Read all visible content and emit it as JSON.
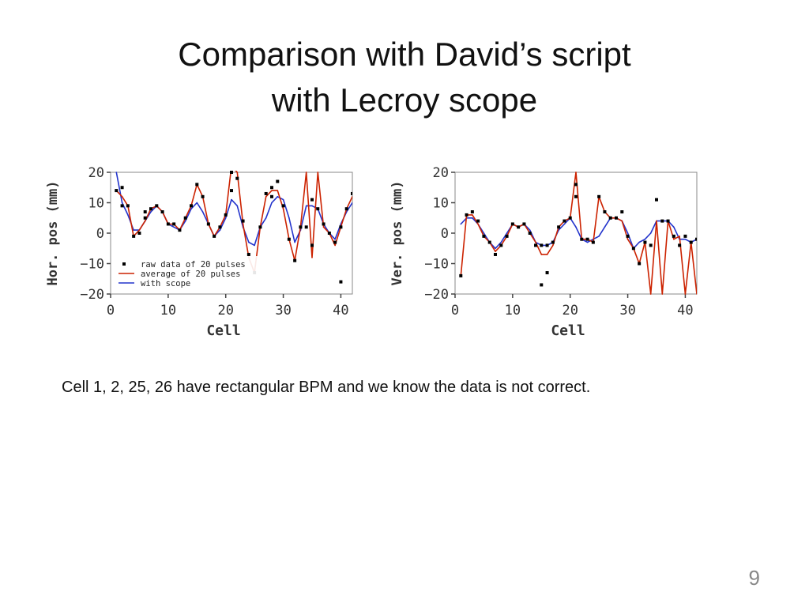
{
  "slide": {
    "title_line1": "Comparison with David’s script",
    "title_line2": "with Lecroy scope",
    "caption": "Cell 1, 2, 25, 26 have rectangular BPM and we know the data is not correct.",
    "page_number": "9"
  },
  "colors": {
    "raw": "#000000",
    "average": "#cc2200",
    "scope": "#2233cc"
  },
  "chart_data": [
    {
      "type": "line",
      "xlabel": "Cell",
      "ylabel": "Hor. pos (mm)",
      "xlim": [
        0,
        42
      ],
      "ylim": [
        -20,
        20
      ],
      "xticks": [
        0,
        10,
        20,
        30,
        40
      ],
      "yticks": [
        20,
        10,
        0,
        -10,
        -20
      ],
      "legend_position": "bottom-center",
      "legend": [
        "raw data of 20 pulses",
        "average of 20 pulses",
        "with scope"
      ],
      "series": [
        {
          "name": "average of 20 pulses",
          "kind": "line",
          "x": [
            1,
            2,
            3,
            4,
            5,
            6,
            7,
            8,
            9,
            10,
            11,
            12,
            13,
            14,
            15,
            16,
            17,
            18,
            19,
            20,
            21,
            22,
            23,
            24,
            25,
            26,
            27,
            28,
            29,
            30,
            31,
            32,
            33,
            34,
            35,
            36,
            37,
            38,
            39,
            40,
            41,
            42
          ],
          "y": [
            14,
            12,
            9,
            -1,
            1,
            4,
            8,
            9,
            7,
            3,
            3,
            1,
            5,
            9,
            16,
            12,
            3,
            -1,
            2,
            6,
            22,
            20,
            3,
            -8,
            -13,
            2,
            12,
            14,
            14,
            8,
            -2,
            -9,
            2,
            20,
            -8,
            20,
            2,
            0,
            -4,
            2,
            8,
            12
          ]
        },
        {
          "name": "with scope",
          "kind": "line",
          "x": [
            1,
            2,
            3,
            4,
            5,
            6,
            7,
            8,
            9,
            10,
            11,
            12,
            13,
            14,
            15,
            16,
            17,
            18,
            19,
            20,
            21,
            22,
            23,
            24,
            25,
            26,
            27,
            28,
            29,
            30,
            31,
            32,
            33,
            34,
            35,
            36,
            37,
            38,
            39,
            40,
            41,
            42
          ],
          "y": [
            20,
            10,
            6,
            1,
            1,
            4,
            7,
            9,
            7,
            3,
            2,
            1,
            4,
            8,
            10,
            7,
            3,
            -1,
            1,
            5,
            11,
            9,
            2,
            -3,
            -4,
            2,
            5,
            10,
            12,
            11,
            5,
            -3,
            1,
            9,
            9,
            8,
            3,
            0,
            -2,
            3,
            7,
            10
          ]
        },
        {
          "name": "raw data of 20 pulses",
          "kind": "points",
          "x": [
            1,
            2,
            2,
            3,
            4,
            5,
            6,
            6,
            7,
            8,
            9,
            10,
            11,
            12,
            13,
            14,
            15,
            16,
            17,
            18,
            19,
            20,
            21,
            21,
            22,
            23,
            24,
            25,
            26,
            27,
            28,
            28,
            29,
            30,
            31,
            32,
            33,
            34,
            35,
            35,
            36,
            37,
            38,
            39,
            40,
            40,
            41,
            42
          ],
          "y": [
            14,
            15,
            9,
            9,
            -1,
            0,
            5,
            7,
            8,
            9,
            7,
            3,
            3,
            1,
            5,
            9,
            16,
            12,
            3,
            -1,
            2,
            6,
            20,
            14,
            18,
            4,
            -7,
            -13,
            2,
            13,
            15,
            12,
            17,
            9,
            -2,
            -9,
            2,
            2,
            11,
            -4,
            8,
            3,
            0,
            -3,
            -16,
            2,
            8,
            13
          ]
        }
      ]
    },
    {
      "type": "line",
      "xlabel": "Cell",
      "ylabel": "Ver. pos (mm)",
      "xlim": [
        0,
        42
      ],
      "ylim": [
        -20,
        20
      ],
      "xticks": [
        0,
        10,
        20,
        30,
        40
      ],
      "yticks": [
        20,
        10,
        0,
        -10,
        -20
      ],
      "series": [
        {
          "name": "average of 20 pulses",
          "kind": "line",
          "x": [
            1,
            2,
            3,
            4,
            5,
            6,
            7,
            8,
            9,
            10,
            11,
            12,
            13,
            14,
            15,
            16,
            17,
            18,
            19,
            20,
            21,
            22,
            23,
            24,
            25,
            26,
            27,
            28,
            29,
            30,
            31,
            32,
            33,
            34,
            35,
            36,
            37,
            38,
            39,
            40,
            41,
            42
          ],
          "y": [
            -14,
            6,
            6,
            3,
            -1,
            -3,
            -6,
            -4,
            -1,
            3,
            2,
            3,
            0,
            -3,
            -7,
            -7,
            -4,
            2,
            4,
            5,
            20,
            -2,
            -2,
            -3,
            12,
            7,
            5,
            5,
            4,
            -2,
            -5,
            -10,
            -3,
            -20,
            4,
            -20,
            4,
            -2,
            -1,
            -20,
            -3,
            -20
          ]
        },
        {
          "name": "with scope",
          "kind": "line",
          "x": [
            1,
            2,
            3,
            4,
            5,
            6,
            7,
            8,
            9,
            10,
            11,
            12,
            13,
            14,
            15,
            16,
            17,
            18,
            19,
            20,
            21,
            22,
            23,
            24,
            25,
            26,
            27,
            28,
            29,
            30,
            31,
            32,
            33,
            34,
            35,
            36,
            37,
            38,
            39,
            40,
            41,
            42
          ],
          "y": [
            3,
            5,
            5,
            3,
            0,
            -3,
            -5,
            -3,
            0,
            3,
            2,
            3,
            1,
            -3,
            -4,
            -4,
            -3,
            1,
            3,
            5,
            2,
            -2,
            -3,
            -2,
            -1,
            2,
            5,
            5,
            4,
            0,
            -5,
            -3,
            -2,
            0,
            4,
            4,
            4,
            2,
            -2,
            -2,
            -3,
            -2
          ]
        },
        {
          "name": "raw data of 20 pulses",
          "kind": "points",
          "x": [
            1,
            2,
            3,
            4,
            5,
            6,
            7,
            8,
            9,
            10,
            11,
            12,
            13,
            14,
            15,
            15,
            16,
            16,
            17,
            18,
            19,
            20,
            21,
            21,
            22,
            23,
            24,
            25,
            26,
            27,
            28,
            29,
            30,
            31,
            32,
            33,
            34,
            35,
            36,
            37,
            38,
            39,
            40,
            41,
            42
          ],
          "y": [
            -14,
            6,
            7,
            4,
            -1,
            -3,
            -7,
            -4,
            -1,
            3,
            2,
            3,
            0,
            -4,
            -4,
            -17,
            -4,
            -13,
            -3,
            2,
            4,
            5,
            16,
            12,
            -2,
            -2,
            -3,
            12,
            7,
            5,
            5,
            7,
            -1,
            -5,
            -10,
            -3,
            -4,
            11,
            4,
            4,
            -1,
            -4,
            -1,
            -3,
            -2
          ]
        }
      ]
    }
  ]
}
